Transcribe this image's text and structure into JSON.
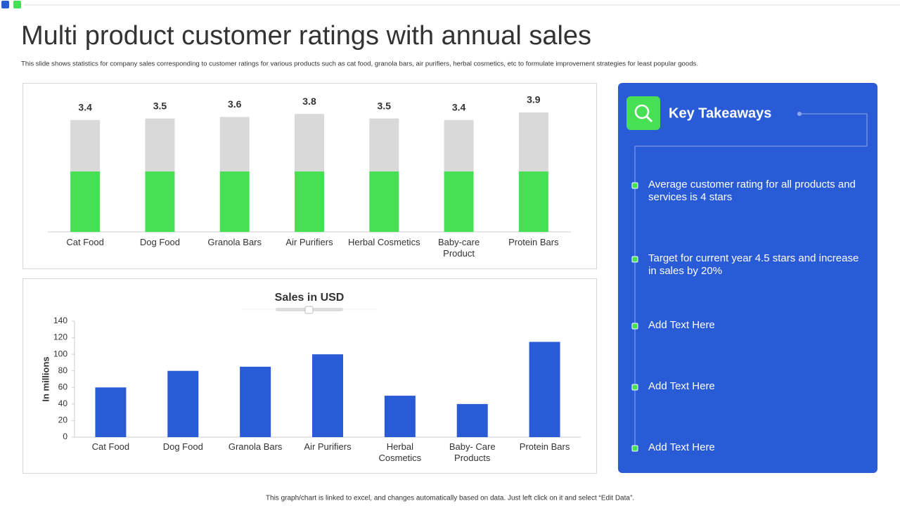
{
  "title": "Multi product customer ratings with annual sales",
  "subtitle": "This slide shows statistics for company sales corresponding to customer ratings for various products such as cat food, granola bars, air purifiers, herbal cosmetics, etc to formulate improvement strategies for least popular goods.",
  "footer": "This graph/chart is linked to excel, and changes automatically based on data. Just left click on it and select “Edit Data”.",
  "panel": {
    "title": "Key Takeaways",
    "items": [
      "Average customer rating for all products and services is 4 stars",
      "Target for current year 4.5 stars and increase in sales by 20%",
      "Add Text Here",
      "Add Text Here",
      "Add Text Here"
    ]
  },
  "chart_data": [
    {
      "type": "stacked-bar",
      "categories": [
        "Cat Food",
        "Dog Food",
        "Granola Bars",
        "Air Purifiers",
        "Herbal Cosmetics",
        "Baby-care Product",
        "Protein Bars"
      ],
      "series": [
        {
          "color": "#47e055",
          "values": [
            4,
            4,
            4,
            4,
            4,
            4,
            4
          ]
        },
        {
          "color": "#d9d9d9",
          "values": [
            3.4,
            3.5,
            3.6,
            3.8,
            3.5,
            3.4,
            3.9
          ],
          "labels": true
        }
      ]
    },
    {
      "type": "bar",
      "title": "Sales in USD",
      "y_label": "In millions",
      "categories": [
        "Cat Food",
        "Dog Food",
        "Granola Bars",
        "Air Purifiers",
        "Herbal Cosmetics",
        "Baby- Care Products",
        "Protein Bars"
      ],
      "values": [
        60,
        80,
        85,
        100,
        50,
        40,
        115
      ],
      "color": "#2a5bd7",
      "ylim": [
        0,
        140
      ],
      "yticks": [
        0,
        20,
        40,
        60,
        80,
        100,
        120,
        140
      ]
    }
  ]
}
